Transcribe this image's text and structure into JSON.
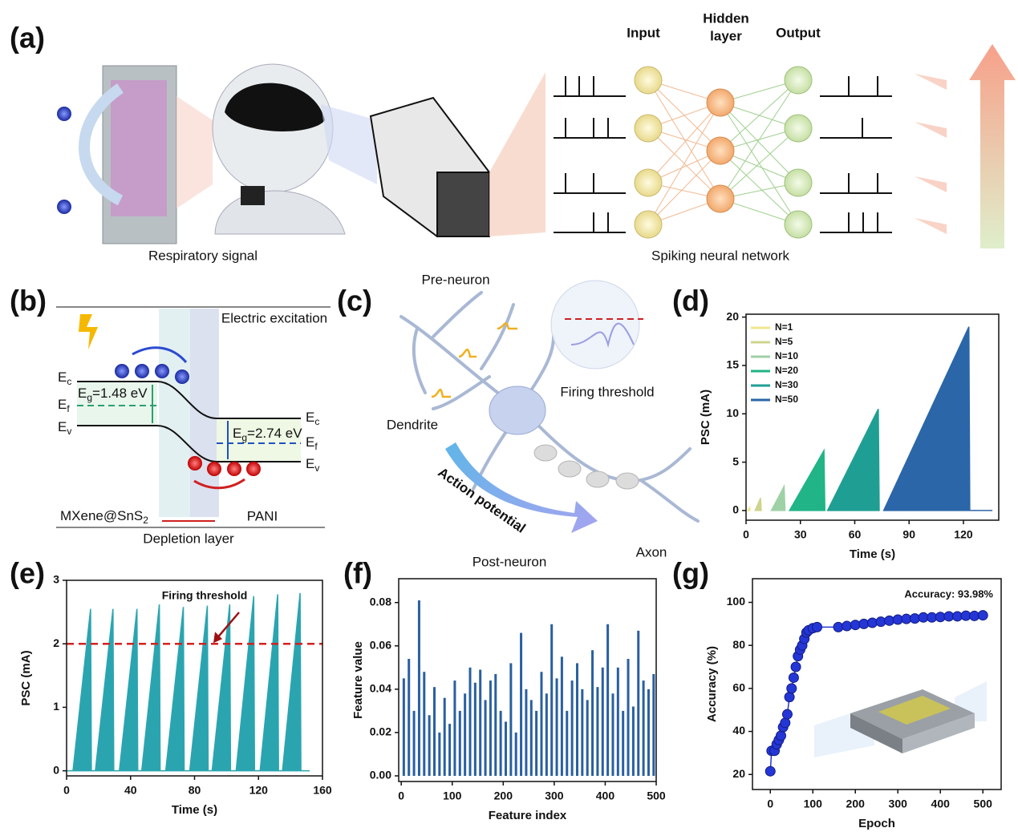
{
  "figure": {
    "a": {
      "label": "(a)",
      "input": "Input",
      "hidden": [
        "Hidden",
        "layer"
      ],
      "output": "Output",
      "left_caption": "Respiratory signal",
      "right_caption": "Spiking neural network"
    },
    "b": {
      "label": "(b)",
      "excitation": "Electric excitation",
      "left_levels": [
        {
          "main": "E",
          "sub": "c"
        },
        {
          "main": "E",
          "sub": "f"
        },
        {
          "main": "E",
          "sub": "v"
        }
      ],
      "right_levels": [
        {
          "main": "E",
          "sub": "c"
        },
        {
          "main": "E",
          "sub": "f"
        },
        {
          "main": "E",
          "sub": "v"
        }
      ],
      "left_gap": {
        "main": "E",
        "sub": "g",
        "rest": "=1.48 eV"
      },
      "right_gap": {
        "main": "E",
        "sub": "g",
        "rest": "=2.74 eV"
      },
      "left_material": {
        "main": "MXene@SnS",
        "sub": "2"
      },
      "right_material": "PANI",
      "depletion": "Depletion layer"
    },
    "c": {
      "label": "(c)",
      "pre": "Pre-neuron",
      "threshold": "Firing threshold",
      "dendrite": "Dendrite",
      "action": "Action potential",
      "post": "Post-neuron",
      "axon": "Axon"
    }
  },
  "chart_data": [
    {
      "type": "area",
      "label": "(d)",
      "xlabel": "Time (s)",
      "ylabel": "PSC (mA)",
      "xlim": [
        0,
        139.5
      ],
      "ylim": [
        -1,
        20.3
      ],
      "xticks": [
        0,
        30,
        60,
        90,
        120
      ],
      "yticks": [
        0,
        5,
        10,
        15,
        20
      ],
      "legend": "upper left",
      "series": [
        {
          "name": "N=1",
          "color": "#efe58c",
          "x": [
            1,
            2,
            2.2
          ],
          "values": [
            0,
            0.3,
            0
          ]
        },
        {
          "name": "N=5",
          "color": "#cfd48e",
          "x": [
            5,
            8,
            8.4
          ],
          "values": [
            0,
            1.3,
            0
          ]
        },
        {
          "name": "N=10",
          "color": "#9fd1a6",
          "x": [
            14,
            21,
            21.5
          ],
          "values": [
            0,
            2.5,
            0
          ]
        },
        {
          "name": "N=20",
          "color": "#21b486",
          "x": [
            24,
            43,
            43.5
          ],
          "values": [
            0,
            6.2,
            0
          ]
        },
        {
          "name": "N=30",
          "color": "#1f9f93",
          "x": [
            45,
            73,
            73.5
          ],
          "values": [
            0,
            10.5,
            0
          ]
        },
        {
          "name": "N=50",
          "color": "#2b66a8",
          "x": [
            76,
            123,
            123.5,
            136
          ],
          "values": [
            0,
            19,
            0,
            0
          ]
        }
      ]
    },
    {
      "type": "area",
      "label": "(e)",
      "xlabel": "Time (s)",
      "ylabel": "PSC (mA)",
      "xlim": [
        0,
        160
      ],
      "ylim": [
        -0.08,
        3
      ],
      "xticks": [
        0,
        40,
        80,
        120,
        160
      ],
      "yticks": [
        0,
        1,
        2,
        3
      ],
      "threshold": {
        "value": 2,
        "color": "#d42020",
        "label": "Firing threshold"
      },
      "series": [
        {
          "color": "#2aa5b0",
          "x": [
            0,
            4,
            15,
            15.5,
            18,
            29,
            29.5,
            33,
            44,
            44.5,
            47,
            58,
            58.5,
            62,
            73,
            73.5,
            77,
            88,
            88.5,
            91,
            102,
            102.5,
            106,
            117,
            117.5,
            121,
            132,
            132.5,
            135,
            146,
            146.5,
            152
          ],
          "values": [
            0,
            0,
            2.55,
            0,
            0,
            2.55,
            0,
            0,
            2.55,
            0,
            0,
            2.62,
            0,
            0,
            2.58,
            0,
            0,
            2.6,
            0,
            0,
            2.62,
            0,
            0,
            2.75,
            0,
            0,
            2.78,
            0,
            0,
            2.8,
            0,
            0
          ]
        }
      ]
    },
    {
      "type": "bar",
      "label": "(f)",
      "xlabel": "Feature index",
      "ylabel": "Feature value",
      "xlim": [
        -5,
        500
      ],
      "ylim": [
        -0.0026,
        0.091
      ],
      "xticks": [
        0,
        100,
        200,
        300,
        400,
        500
      ],
      "yticks": [
        {
          "value": 0,
          "label": "0.00"
        },
        0.02,
        0.04,
        0.06,
        0.08
      ],
      "color": "#2a5fa0",
      "x": [
        5,
        15,
        25,
        35,
        45,
        55,
        65,
        75,
        85,
        95,
        105,
        115,
        125,
        135,
        145,
        155,
        165,
        175,
        185,
        195,
        205,
        215,
        225,
        235,
        245,
        255,
        265,
        275,
        285,
        295,
        305,
        315,
        325,
        335,
        345,
        355,
        365,
        375,
        385,
        395,
        405,
        415,
        425,
        435,
        445,
        455,
        465,
        475,
        485,
        495
      ],
      "values": [
        0.045,
        0.054,
        0.03,
        0.081,
        0.048,
        0.028,
        0.041,
        0.02,
        0.036,
        0.024,
        0.044,
        0.03,
        0.038,
        0.05,
        0.043,
        0.049,
        0.035,
        0.044,
        0.047,
        0.03,
        0.025,
        0.052,
        0.02,
        0.066,
        0.04,
        0.035,
        0.03,
        0.048,
        0.038,
        0.07,
        0.045,
        0.055,
        0.03,
        0.044,
        0.052,
        0.04,
        0.035,
        0.058,
        0.041,
        0.05,
        0.07,
        0.038,
        0.05,
        0.03,
        0.054,
        0.032,
        0.067,
        0.044,
        0.04,
        0.047
      ]
    },
    {
      "type": "line",
      "label": "(g)",
      "xlabel": "Epoch",
      "ylabel": "Accuracy (%)",
      "annotation": "Accuracy: 93.98%",
      "xlim": [
        -42,
        543
      ],
      "ylim": [
        13,
        111
      ],
      "xticks": [
        0,
        100,
        200,
        300,
        400,
        500
      ],
      "yticks": [
        20,
        40,
        60,
        80,
        100
      ],
      "series": [
        {
          "color": "#2536d6",
          "x": [
            0,
            3,
            10,
            15,
            20,
            25,
            30,
            35,
            40,
            45,
            50,
            55,
            60,
            65,
            70,
            75,
            80,
            85,
            90,
            100,
            110,
            160,
            180,
            200,
            220,
            240,
            260,
            280,
            300,
            320,
            340,
            360,
            380,
            400,
            420,
            440,
            460,
            480,
            500
          ],
          "values": [
            21.5,
            31,
            31,
            34,
            36,
            38,
            42,
            44,
            48,
            56,
            60,
            65,
            70,
            75,
            78,
            80,
            83,
            86,
            87,
            88,
            88.5,
            88.5,
            89,
            89.5,
            90,
            90.5,
            91,
            91.5,
            92,
            92.3,
            92.5,
            93,
            93,
            93.2,
            93.5,
            93.5,
            93.8,
            93.7,
            93.98
          ]
        }
      ]
    }
  ]
}
